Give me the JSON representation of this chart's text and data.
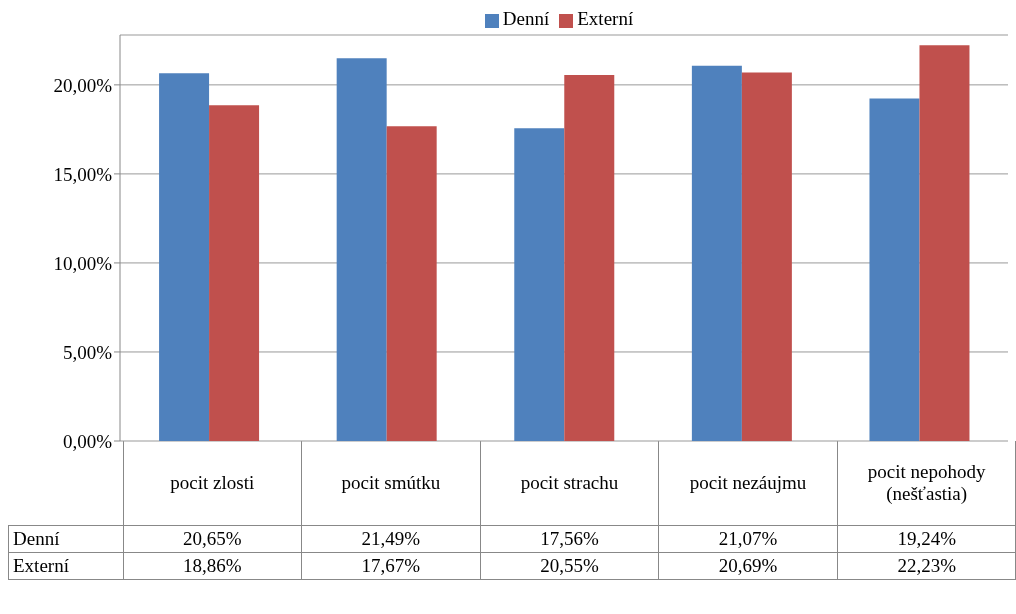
{
  "chart_data": {
    "type": "bar",
    "categories": [
      "pocit zlosti",
      "pocit smútku",
      "pocit strachu",
      "pocit nezáujmu",
      "pocit nepohody (nešťastia)"
    ],
    "series": [
      {
        "name": "Denní",
        "color": "#4f81bd",
        "values": [
          20.65,
          21.49,
          17.56,
          21.07,
          19.24
        ],
        "value_labels": [
          "20,65%",
          "21,49%",
          "17,56%",
          "21,07%",
          "19,24%"
        ]
      },
      {
        "name": "Externí",
        "color": "#c0504d",
        "values": [
          18.86,
          17.67,
          20.55,
          20.69,
          22.23
        ],
        "value_labels": [
          "18,86%",
          "17,67%",
          "20,55%",
          "20,69%",
          "22,23%"
        ]
      }
    ],
    "ylim": [
      0,
      22.8
    ],
    "yticks": [
      {
        "value": 0,
        "label": "0,00%"
      },
      {
        "value": 5,
        "label": "5,00%"
      },
      {
        "value": 10,
        "label": "10,00%"
      },
      {
        "value": 15,
        "label": "15,00%"
      },
      {
        "value": 20,
        "label": "20,00%"
      }
    ],
    "grid": "y",
    "legend": "top"
  }
}
